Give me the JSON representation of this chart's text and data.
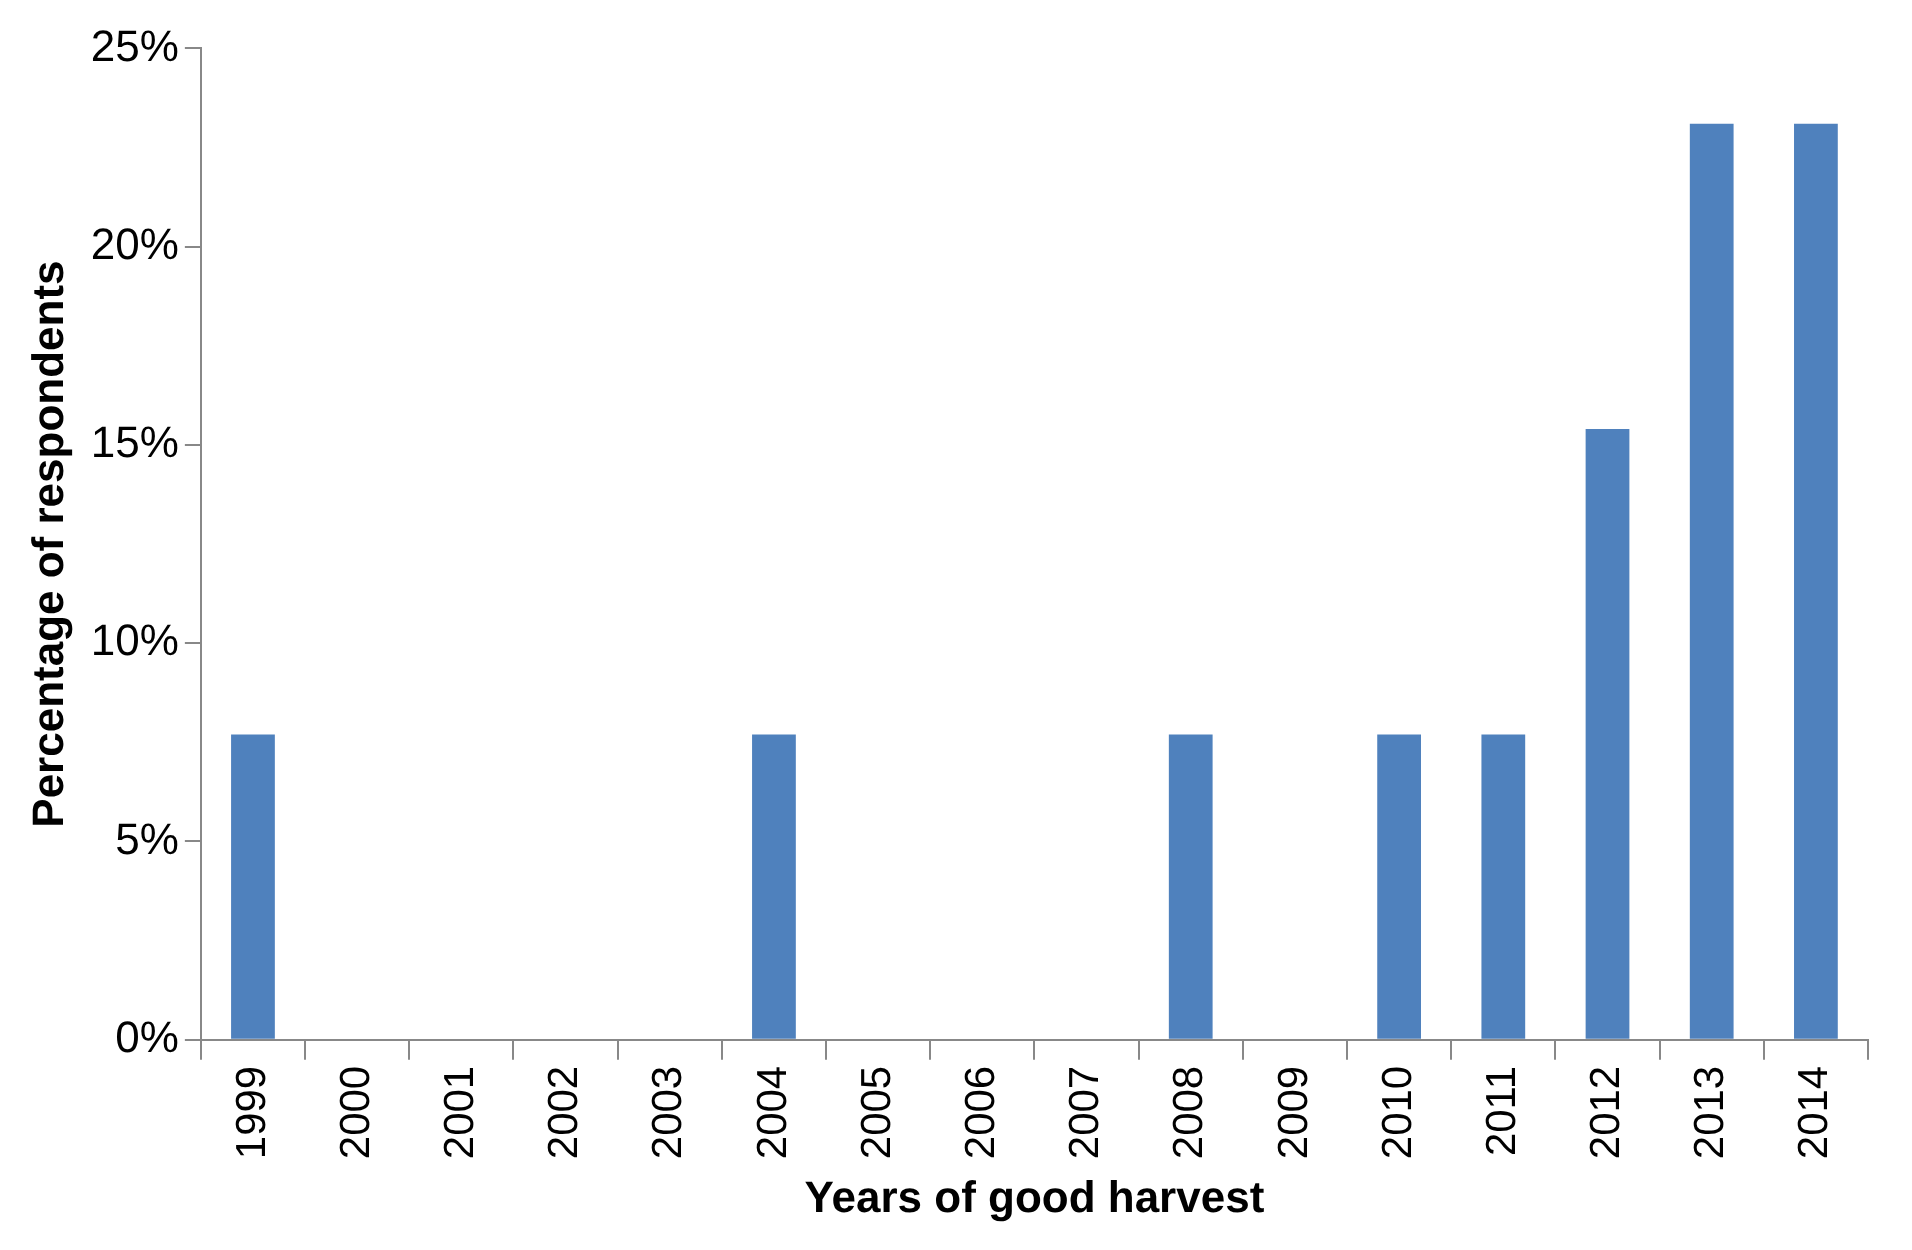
{
  "chart_data": {
    "type": "bar",
    "xlabel": "Years of good harvest",
    "ylabel": "Percentage of respondents",
    "categories": [
      "1999",
      "2000",
      "2001",
      "2002",
      "2003",
      "2004",
      "2005",
      "2006",
      "2007",
      "2008",
      "2009",
      "2010",
      "2011",
      "2012",
      "2013",
      "2014"
    ],
    "values": [
      7.7,
      0,
      0,
      0,
      0,
      7.7,
      0,
      0,
      0,
      7.7,
      0,
      7.7,
      7.7,
      15.4,
      23.1,
      23.1
    ],
    "color": "#4f81bd",
    "ylim": [
      0,
      25
    ],
    "yticks": [
      {
        "value": 0,
        "label": "0%"
      },
      {
        "value": 5,
        "label": "5%"
      },
      {
        "value": 10,
        "label": "10%"
      },
      {
        "value": 15,
        "label": "15%"
      },
      {
        "value": 20,
        "label": "20%"
      },
      {
        "value": 25,
        "label": "25%"
      }
    ],
    "grid": false,
    "legend": false
  }
}
